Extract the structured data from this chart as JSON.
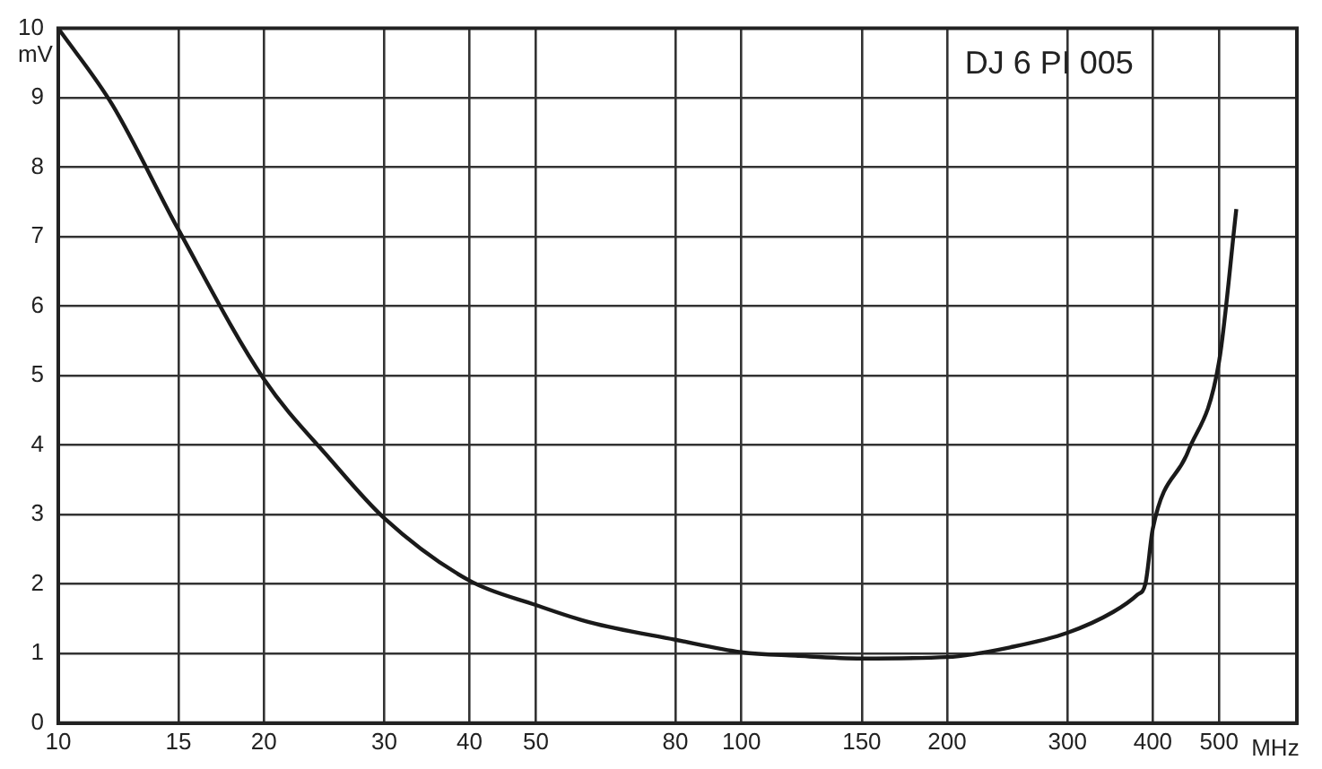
{
  "chart_data": {
    "type": "line",
    "xlabel": "MHz",
    "ylabel": "mV",
    "annotations": [
      "DJ 6 PI 005"
    ],
    "x": [
      10,
      12,
      15,
      20,
      25,
      30,
      40,
      50,
      60,
      80,
      100,
      120,
      150,
      200,
      250,
      300,
      350,
      380,
      390,
      400,
      450,
      500,
      530
    ],
    "series": [
      {
        "color": "#1a1a1a",
        "values": [
          10,
          8.9,
          7.1,
          4.95,
          3.8,
          2.95,
          2.05,
          1.7,
          1.45,
          1.2,
          1.02,
          0.97,
          0.93,
          0.95,
          1.1,
          1.3,
          1.6,
          1.85,
          2.0,
          2.8,
          3.9,
          5.2,
          7.4
        ]
      }
    ],
    "xlim": [
      10,
      650
    ],
    "ylim": [
      0,
      10
    ],
    "xticks": [
      10,
      15,
      20,
      30,
      40,
      50,
      80,
      100,
      150,
      200,
      300,
      400,
      500
    ],
    "yticks": [
      0,
      1,
      2,
      3,
      4,
      5,
      6,
      7,
      8,
      9,
      10
    ],
    "log": "x",
    "grid": true,
    "marker": "none",
    "line_style": "solid"
  }
}
